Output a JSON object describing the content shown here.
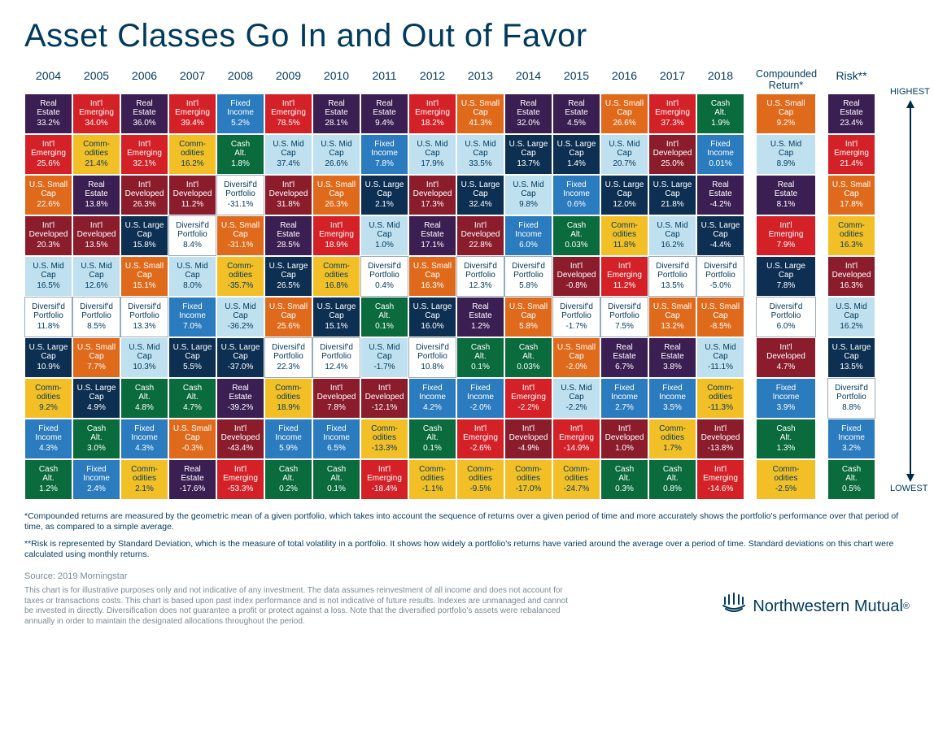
{
  "title": "Asset Classes Go In and Out of Favor",
  "headers": {
    "years": [
      "2004",
      "2005",
      "2006",
      "2007",
      "2008",
      "2009",
      "2010",
      "2011",
      "2012",
      "2013",
      "2014",
      "2015",
      "2016",
      "2017",
      "2018"
    ],
    "compounded": "Compounded Return*",
    "risk": "Risk**",
    "highest": "HIGHEST",
    "lowest": "LOWEST"
  },
  "categories": {
    "real_estate": {
      "label": "Real Estate",
      "bg": "#3b1e52",
      "fg": "#ffffff"
    },
    "intl_emerging": {
      "label": "Int'l Emerging",
      "bg": "#d42027",
      "fg": "#ffffff"
    },
    "us_small": {
      "label": "U.S. Small Cap",
      "bg": "#e06a1b",
      "fg": "#ffffff"
    },
    "intl_developed": {
      "label": "Int'l Developed",
      "bg": "#8a1c2c",
      "fg": "#ffffff"
    },
    "us_mid": {
      "label": "U.S. Mid Cap",
      "bg": "#bfe0ee",
      "fg": "#003a5d"
    },
    "diversified": {
      "label": "Diversif'd Portfolio",
      "bg": "#ffffff",
      "fg": "#003a5d",
      "border": "#9aaab4"
    },
    "us_large": {
      "label": "U.S. Large Cap",
      "bg": "#0c2f52",
      "fg": "#ffffff"
    },
    "commodities": {
      "label": "Comm-odities",
      "bg": "#f2c026",
      "fg": "#003a5d"
    },
    "fixed_income": {
      "label": "Fixed Income",
      "bg": "#2b7bbf",
      "fg": "#ffffff"
    },
    "cash_alt": {
      "label": "Cash Alt.",
      "bg": "#0a6b3d",
      "fg": "#ffffff"
    }
  },
  "grid": [
    [
      {
        "c": "real_estate",
        "v": "33.2%"
      },
      {
        "c": "intl_emerging",
        "v": "34.0%"
      },
      {
        "c": "real_estate",
        "v": "36.0%"
      },
      {
        "c": "intl_emerging",
        "v": "39.4%"
      },
      {
        "c": "fixed_income",
        "v": "5.2%"
      },
      {
        "c": "intl_emerging",
        "v": "78.5%"
      },
      {
        "c": "real_estate",
        "v": "28.1%"
      },
      {
        "c": "real_estate",
        "v": "9.4%"
      },
      {
        "c": "intl_emerging",
        "v": "18.2%"
      },
      {
        "c": "us_small",
        "v": "41.3%"
      },
      {
        "c": "real_estate",
        "v": "32.0%"
      },
      {
        "c": "real_estate",
        "v": "4.5%"
      },
      {
        "c": "us_small",
        "v": "26.6%"
      },
      {
        "c": "intl_emerging",
        "v": "37.3%"
      },
      {
        "c": "cash_alt",
        "v": "1.9%"
      },
      {
        "c": "us_small",
        "v": "9.2%"
      },
      {
        "c": "real_estate",
        "v": "23.4%"
      }
    ],
    [
      {
        "c": "intl_emerging",
        "v": "25.6%"
      },
      {
        "c": "commodities",
        "v": "21.4%"
      },
      {
        "c": "intl_emerging",
        "v": "32.1%"
      },
      {
        "c": "commodities",
        "v": "16.2%"
      },
      {
        "c": "cash_alt",
        "v": "1.8%"
      },
      {
        "c": "us_mid",
        "v": "37.4%"
      },
      {
        "c": "us_mid",
        "v": "26.6%"
      },
      {
        "c": "fixed_income",
        "v": "7.8%"
      },
      {
        "c": "us_mid",
        "v": "17.9%"
      },
      {
        "c": "us_mid",
        "v": "33.5%"
      },
      {
        "c": "us_large",
        "v": "13.7%"
      },
      {
        "c": "us_large",
        "v": "1.4%"
      },
      {
        "c": "us_mid",
        "v": "20.7%"
      },
      {
        "c": "intl_developed",
        "v": "25.0%"
      },
      {
        "c": "fixed_income",
        "v": "0.01%"
      },
      {
        "c": "us_mid",
        "v": "8.9%"
      },
      {
        "c": "intl_emerging",
        "v": "21.4%"
      }
    ],
    [
      {
        "c": "us_small",
        "v": "22.6%"
      },
      {
        "c": "real_estate",
        "v": "13.8%"
      },
      {
        "c": "intl_developed",
        "v": "26.3%"
      },
      {
        "c": "intl_developed",
        "v": "11.2%"
      },
      {
        "c": "diversified",
        "v": "-31.1%"
      },
      {
        "c": "intl_developed",
        "v": "31.8%"
      },
      {
        "c": "us_small",
        "v": "26.3%"
      },
      {
        "c": "us_large",
        "v": "2.1%"
      },
      {
        "c": "intl_developed",
        "v": "17.3%"
      },
      {
        "c": "us_large",
        "v": "32.4%"
      },
      {
        "c": "us_mid",
        "v": "9.8%"
      },
      {
        "c": "fixed_income",
        "v": "0.6%"
      },
      {
        "c": "us_large",
        "v": "12.0%"
      },
      {
        "c": "us_large",
        "v": "21.8%"
      },
      {
        "c": "real_estate",
        "v": "-4.2%"
      },
      {
        "c": "real_estate",
        "v": "8.1%"
      },
      {
        "c": "us_small",
        "v": "17.8%"
      }
    ],
    [
      {
        "c": "intl_developed",
        "v": "20.3%"
      },
      {
        "c": "intl_developed",
        "v": "13.5%"
      },
      {
        "c": "us_large",
        "v": "15.8%"
      },
      {
        "c": "diversified",
        "v": "8.4%"
      },
      {
        "c": "us_small",
        "v": "-31.1%"
      },
      {
        "c": "real_estate",
        "v": "28.5%"
      },
      {
        "c": "intl_emerging",
        "v": "18.9%"
      },
      {
        "c": "us_mid",
        "v": "1.0%"
      },
      {
        "c": "real_estate",
        "v": "17.1%"
      },
      {
        "c": "intl_developed",
        "v": "22.8%"
      },
      {
        "c": "fixed_income",
        "v": "6.0%"
      },
      {
        "c": "cash_alt",
        "v": "0.03%"
      },
      {
        "c": "commodities",
        "v": "11.8%"
      },
      {
        "c": "us_mid",
        "v": "16.2%"
      },
      {
        "c": "us_large",
        "v": "-4.4%"
      },
      {
        "c": "intl_emerging",
        "v": "7.9%"
      },
      {
        "c": "commodities",
        "v": "16.3%"
      }
    ],
    [
      {
        "c": "us_mid",
        "v": "16.5%"
      },
      {
        "c": "us_mid",
        "v": "12.6%"
      },
      {
        "c": "us_small",
        "v": "15.1%"
      },
      {
        "c": "us_mid",
        "v": "8.0%"
      },
      {
        "c": "commodities",
        "v": "-35.7%"
      },
      {
        "c": "us_large",
        "v": "26.5%"
      },
      {
        "c": "commodities",
        "v": "16.8%"
      },
      {
        "c": "diversified",
        "v": "0.4%"
      },
      {
        "c": "us_small",
        "v": "16.3%"
      },
      {
        "c": "diversified",
        "v": "12.3%"
      },
      {
        "c": "diversified",
        "v": "5.8%"
      },
      {
        "c": "intl_developed",
        "v": "-0.8%"
      },
      {
        "c": "intl_emerging",
        "v": "11.2%"
      },
      {
        "c": "diversified",
        "v": "13.5%"
      },
      {
        "c": "diversified",
        "v": "-5.0%"
      },
      {
        "c": "us_large",
        "v": "7.8%"
      },
      {
        "c": "intl_developed",
        "v": "16.3%"
      }
    ],
    [
      {
        "c": "diversified",
        "v": "11.8%"
      },
      {
        "c": "diversified",
        "v": "8.5%"
      },
      {
        "c": "diversified",
        "v": "13.3%"
      },
      {
        "c": "fixed_income",
        "v": "7.0%"
      },
      {
        "c": "us_mid",
        "v": "-36.2%"
      },
      {
        "c": "us_small",
        "v": "25.6%"
      },
      {
        "c": "us_large",
        "v": "15.1%"
      },
      {
        "c": "cash_alt",
        "v": "0.1%"
      },
      {
        "c": "us_large",
        "v": "16.0%"
      },
      {
        "c": "real_estate",
        "v": "1.2%"
      },
      {
        "c": "us_small",
        "v": "5.8%"
      },
      {
        "c": "diversified",
        "v": "-1.7%"
      },
      {
        "c": "diversified",
        "v": "7.5%"
      },
      {
        "c": "us_small",
        "v": "13.2%"
      },
      {
        "c": "us_small",
        "v": "-8.5%"
      },
      {
        "c": "diversified",
        "v": "6.0%"
      },
      {
        "c": "us_mid",
        "v": "16.2%"
      }
    ],
    [
      {
        "c": "us_large",
        "v": "10.9%"
      },
      {
        "c": "us_small",
        "v": "7.7%"
      },
      {
        "c": "us_mid",
        "v": "10.3%"
      },
      {
        "c": "us_large",
        "v": "5.5%"
      },
      {
        "c": "us_large",
        "v": "-37.0%"
      },
      {
        "c": "diversified",
        "v": "22.3%"
      },
      {
        "c": "diversified",
        "v": "12.4%"
      },
      {
        "c": "us_mid",
        "v": "-1.7%"
      },
      {
        "c": "diversified",
        "v": "10.8%"
      },
      {
        "c": "cash_alt",
        "v": "0.1%"
      },
      {
        "c": "cash_alt",
        "v": "0.03%"
      },
      {
        "c": "us_small",
        "v": "-2.0%"
      },
      {
        "c": "real_estate",
        "v": "6.7%"
      },
      {
        "c": "real_estate",
        "v": "3.8%"
      },
      {
        "c": "us_mid",
        "v": "-11.1%"
      },
      {
        "c": "intl_developed",
        "v": "4.7%"
      },
      {
        "c": "us_large",
        "v": "13.5%"
      }
    ],
    [
      {
        "c": "commodities",
        "v": "9.2%"
      },
      {
        "c": "us_large",
        "v": "4.9%"
      },
      {
        "c": "cash_alt",
        "v": "4.8%"
      },
      {
        "c": "cash_alt",
        "v": "4.7%"
      },
      {
        "c": "real_estate",
        "v": "-39.2%"
      },
      {
        "c": "commodities",
        "v": "18.9%"
      },
      {
        "c": "intl_developed",
        "v": "7.8%"
      },
      {
        "c": "intl_developed",
        "v": "-12.1%"
      },
      {
        "c": "fixed_income",
        "v": "4.2%"
      },
      {
        "c": "fixed_income",
        "v": "-2.0%"
      },
      {
        "c": "intl_emerging",
        "v": "-2.2%"
      },
      {
        "c": "us_mid",
        "v": "-2.2%"
      },
      {
        "c": "fixed_income",
        "v": "2.7%"
      },
      {
        "c": "fixed_income",
        "v": "3.5%"
      },
      {
        "c": "commodities",
        "v": "-11.3%"
      },
      {
        "c": "fixed_income",
        "v": "3.9%"
      },
      {
        "c": "diversified",
        "v": "8.8%"
      }
    ],
    [
      {
        "c": "fixed_income",
        "v": "4.3%"
      },
      {
        "c": "cash_alt",
        "v": "3.0%"
      },
      {
        "c": "fixed_income",
        "v": "4.3%"
      },
      {
        "c": "us_small",
        "v": "-0.3%"
      },
      {
        "c": "intl_developed",
        "v": "-43.4%"
      },
      {
        "c": "fixed_income",
        "v": "5.9%"
      },
      {
        "c": "fixed_income",
        "v": "6.5%"
      },
      {
        "c": "commodities",
        "v": "-13.3%"
      },
      {
        "c": "cash_alt",
        "v": "0.1%"
      },
      {
        "c": "intl_emerging",
        "v": "-2.6%"
      },
      {
        "c": "intl_developed",
        "v": "-4.9%"
      },
      {
        "c": "intl_emerging",
        "v": "-14.9%"
      },
      {
        "c": "intl_developed",
        "v": "1.0%"
      },
      {
        "c": "commodities",
        "v": "1.7%"
      },
      {
        "c": "intl_developed",
        "v": "-13.8%"
      },
      {
        "c": "cash_alt",
        "v": "1.3%"
      },
      {
        "c": "fixed_income",
        "v": "3.2%"
      }
    ],
    [
      {
        "c": "cash_alt",
        "v": "1.2%"
      },
      {
        "c": "fixed_income",
        "v": "2.4%"
      },
      {
        "c": "commodities",
        "v": "2.1%"
      },
      {
        "c": "real_estate",
        "v": "-17.6%"
      },
      {
        "c": "intl_emerging",
        "v": "-53.3%"
      },
      {
        "c": "cash_alt",
        "v": "0.2%"
      },
      {
        "c": "cash_alt",
        "v": "0.1%"
      },
      {
        "c": "intl_emerging",
        "v": "-18.4%"
      },
      {
        "c": "commodities",
        "v": "-1.1%"
      },
      {
        "c": "commodities",
        "v": "-9.5%"
      },
      {
        "c": "commodities",
        "v": "-17.0%"
      },
      {
        "c": "commodities",
        "v": "-24.7%"
      },
      {
        "c": "cash_alt",
        "v": "0.3%"
      },
      {
        "c": "cash_alt",
        "v": "0.8%"
      },
      {
        "c": "intl_emerging",
        "v": "-14.6%"
      },
      {
        "c": "commodities",
        "v": "-2.5%"
      },
      {
        "c": "cash_alt",
        "v": "0.5%"
      }
    ]
  ],
  "footnotes": {
    "f1": "*Compounded returns are measured by the geometric mean of a given portfolio, which takes into account the sequence of returns over a given period of time and more accurately shows the portfolio's performance over that period of time, as compared to a simple average.",
    "f2": "**Risk is represented by Standard Deviation, which is the measure of total volatility in a portfolio. It shows how widely a portfolio's returns have varied around the average over a period of time. Standard deviations on this chart were calculated using monthly returns."
  },
  "source": "Source: 2019 Morningstar",
  "disclaimer": "This chart is for illustrative purposes only and not indicative of any investment. The data assumes reinvestment of all income and does not account for taxes or transactions costs. This chart is based upon past index performance and is not indicative of future results. Indexes are unmanaged and cannot be invested in directly. Diversification does not guarantee a profit or protect against a loss. Note that the diversified portfolio's assets were rebalanced annually in order to maintain the designated allocations throughout the period.",
  "logo_text": "Northwestern Mutual",
  "logo_reg": "®"
}
